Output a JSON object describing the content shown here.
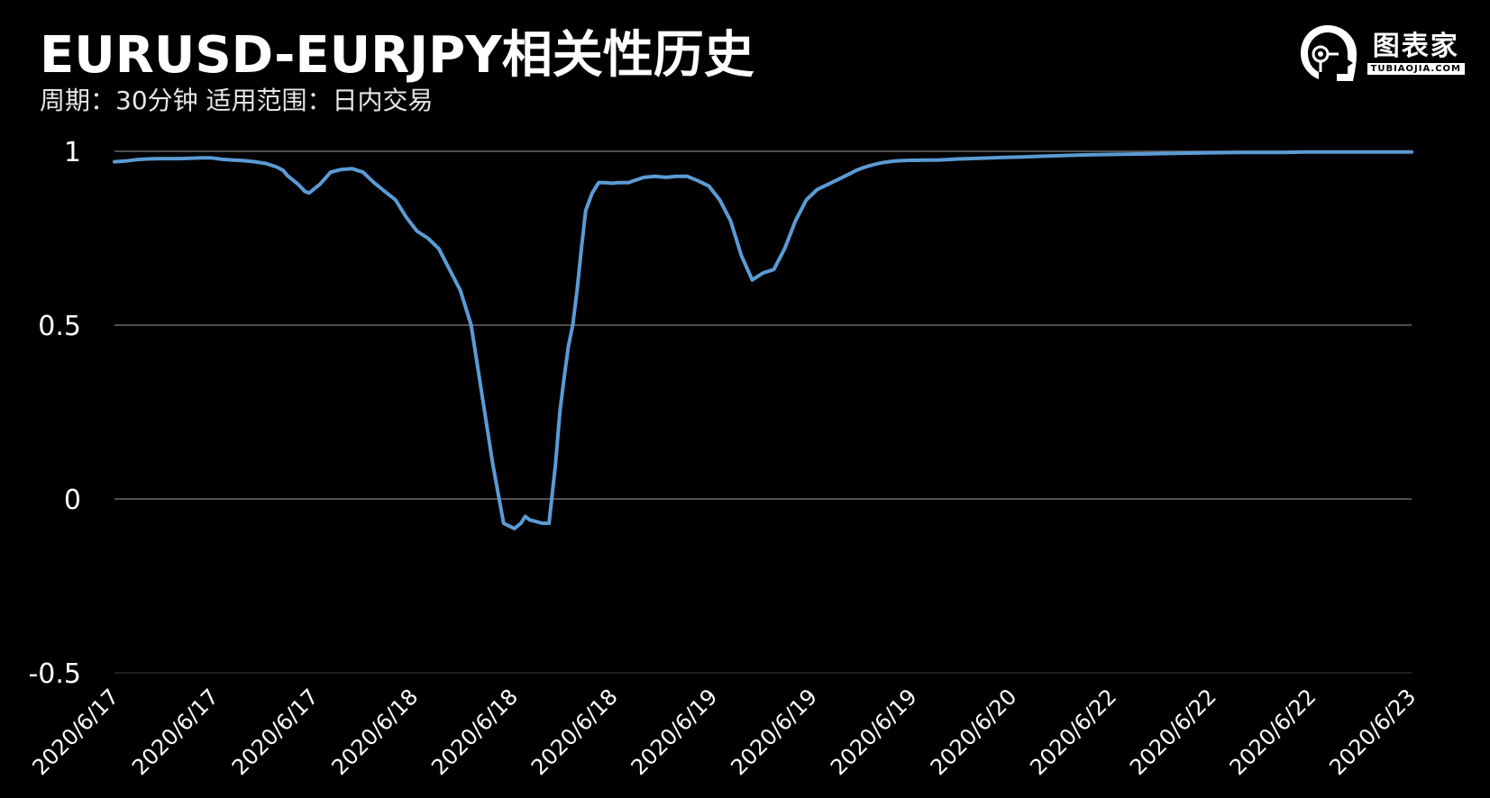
{
  "header": {
    "title": "EURUSD-EURJPY相关性历史",
    "subtitle": "周期：30分钟  适用范围：日内交易"
  },
  "brand": {
    "name": "图表家",
    "domain": "TUBIAOJIA.COM",
    "logo_icon": "robot-head-icon"
  },
  "colors": {
    "background": "#000000",
    "line": "#5b9bd5",
    "grid": "#6b6b6b",
    "text": "#ffffff"
  },
  "chart_data": {
    "type": "line",
    "title": "EURUSD-EURJPY相关性历史",
    "subtitle": "周期：30分钟  适用范围：日内交易",
    "xlabel": "",
    "ylabel": "",
    "ylim": [
      -0.5,
      1
    ],
    "yticks": [
      1,
      0.5,
      0,
      -0.5
    ],
    "ytick_labels": [
      "1",
      "0.5",
      "0",
      "-0.5"
    ],
    "grid": "horizontal",
    "legend": "none",
    "xtick_labels": [
      "2020/6/17",
      "2020/6/17",
      "2020/6/17",
      "2020/6/18",
      "2020/6/18",
      "2020/6/18",
      "2020/6/19",
      "2020/6/19",
      "2020/6/19",
      "2020/6/20",
      "2020/6/22",
      "2020/6/22",
      "2020/6/22",
      "2020/6/23"
    ],
    "series": [
      {
        "x": [
          0,
          5,
          10,
          15,
          20,
          25,
          30,
          35,
          40,
          45,
          50,
          55,
          60,
          65,
          70,
          75,
          78,
          80,
          82,
          85,
          88,
          90,
          95,
          100,
          105,
          110,
          115,
          120,
          125,
          130,
          135,
          140,
          145,
          150,
          155,
          160,
          165,
          170,
          175,
          180,
          185,
          188,
          190,
          192,
          195,
          198,
          201,
          204,
          206,
          208,
          210,
          212,
          214,
          216,
          218,
          221,
          224,
          227,
          230,
          233,
          236,
          238,
          240,
          245,
          250,
          255,
          260,
          265,
          270,
          275,
          280,
          285,
          290,
          295,
          300,
          305,
          310,
          315,
          320,
          325,
          330,
          335,
          340,
          343,
          346,
          349,
          352,
          355,
          358,
          361,
          364,
          367,
          370,
          375,
          380,
          385,
          390,
          395,
          400,
          410,
          420,
          430,
          440,
          450,
          460,
          470,
          480,
          490,
          500,
          510,
          520,
          530,
          540,
          550,
          560,
          570,
          580,
          590,
          600
        ],
        "y": [
          0.97,
          0.972,
          0.976,
          0.978,
          0.979,
          0.979,
          0.979,
          0.98,
          0.981,
          0.981,
          0.977,
          0.975,
          0.973,
          0.97,
          0.965,
          0.955,
          0.945,
          0.93,
          0.92,
          0.905,
          0.885,
          0.88,
          0.905,
          0.94,
          0.948,
          0.95,
          0.94,
          0.91,
          0.885,
          0.86,
          0.81,
          0.77,
          0.75,
          0.72,
          0.66,
          0.6,
          0.5,
          0.3,
          0.1,
          -0.07,
          -0.085,
          -0.07,
          -0.05,
          -0.06,
          -0.065,
          -0.07,
          -0.07,
          0.1,
          0.25,
          0.35,
          0.44,
          0.5,
          0.6,
          0.72,
          0.83,
          0.88,
          0.91,
          0.91,
          0.908,
          0.91,
          0.91,
          0.91,
          0.915,
          0.925,
          0.928,
          0.925,
          0.928,
          0.928,
          0.915,
          0.9,
          0.86,
          0.8,
          0.7,
          0.63,
          0.65,
          0.66,
          0.72,
          0.8,
          0.86,
          0.89,
          0.905,
          0.92,
          0.935,
          0.945,
          0.952,
          0.958,
          0.963,
          0.967,
          0.97,
          0.972,
          0.973,
          0.974,
          0.974,
          0.975,
          0.975,
          0.976,
          0.978,
          0.979,
          0.98,
          0.982,
          0.984,
          0.986,
          0.988,
          0.99,
          0.991,
          0.992,
          0.993,
          0.994,
          0.995,
          0.996,
          0.997,
          0.997,
          0.997,
          0.998,
          0.998,
          0.998,
          0.998,
          0.998,
          0.998
        ]
      }
    ]
  }
}
